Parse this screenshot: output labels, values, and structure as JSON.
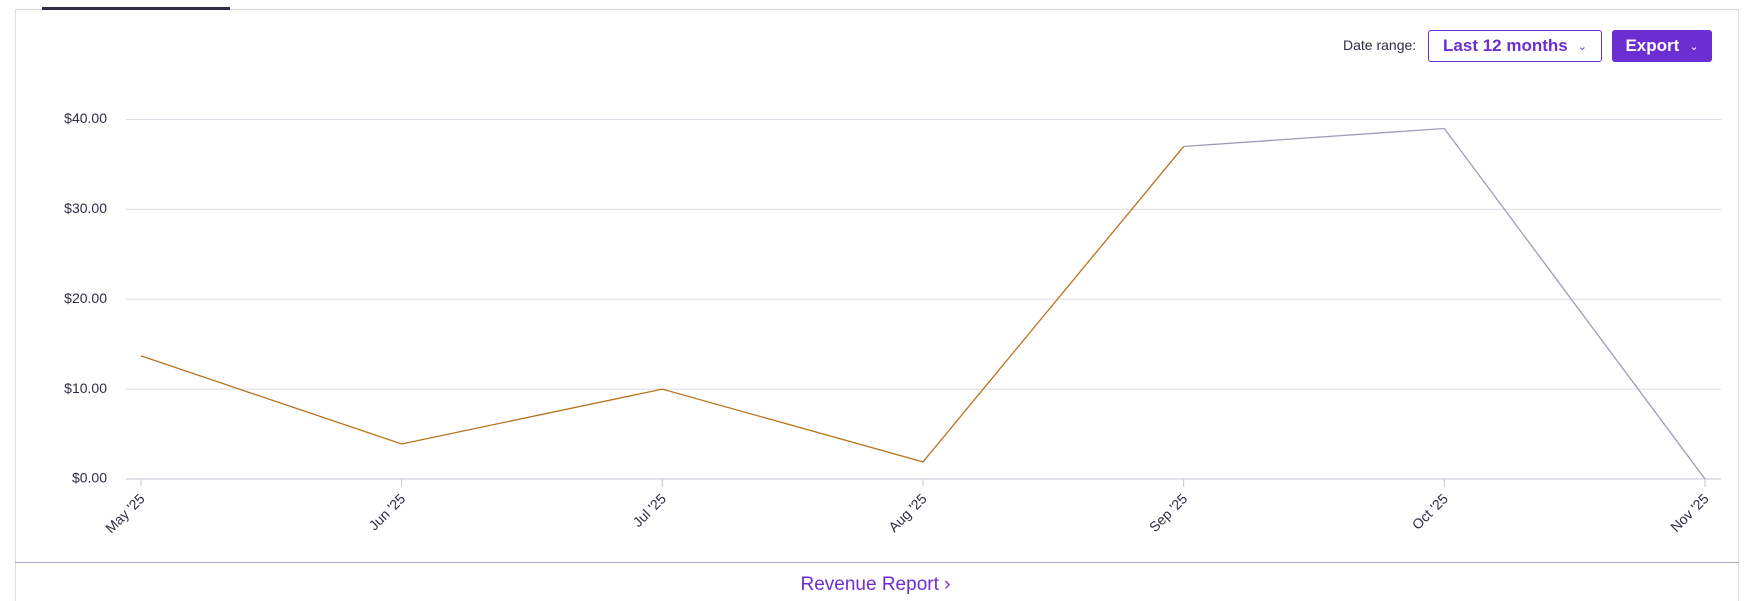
{
  "controls": {
    "date_range_label": "Date range:",
    "date_range_value": "Last 12 months",
    "export": "Export"
  },
  "footer_link": "Revenue Report",
  "chart_data": {
    "type": "line",
    "categories": [
      "May '25",
      "Jun '25",
      "Jul '25",
      "Aug '25",
      "Sep '25",
      "Oct '25",
      "Nov '25"
    ],
    "series": [
      {
        "color": "#b8721c",
        "values": [
          13.7,
          3.9,
          10,
          1.9,
          37,
          null,
          null
        ]
      },
      {
        "color": "#9c9cb8",
        "values": [
          null,
          null,
          null,
          null,
          37,
          39,
          0
        ]
      }
    ],
    "ylim": [
      0,
      40
    ],
    "yticks": [
      {
        "value": 0,
        "label": "$0.00"
      },
      {
        "value": 10,
        "label": "$10.00"
      },
      {
        "value": 20,
        "label": "$20.00"
      },
      {
        "value": 30,
        "label": "$30.00"
      },
      {
        "value": 40,
        "label": "$40.00"
      }
    ],
    "grid": true
  }
}
